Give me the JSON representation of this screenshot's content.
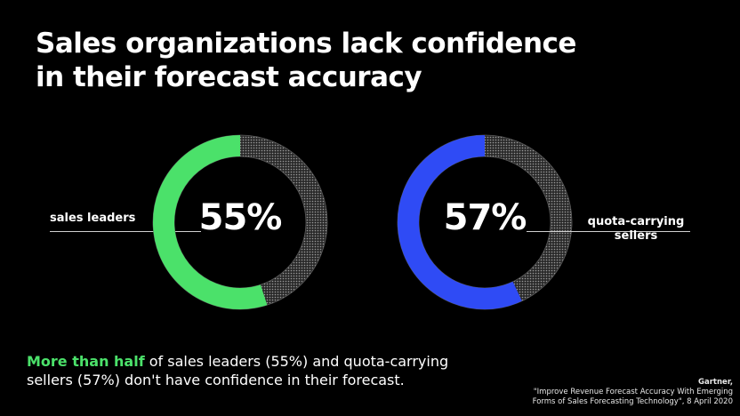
{
  "title": {
    "line1": "Sales organizations lack confidence",
    "line2": "in their forecast accuracy"
  },
  "chart_data": {
    "type": "pie",
    "variant": "donut",
    "charts": [
      {
        "label": "sales leaders",
        "value": 55,
        "display": "55%",
        "color": "#4be16a"
      },
      {
        "label_line1": "quota-carrying",
        "label_line2": "sellers",
        "value": 57,
        "display": "57%",
        "color": "#2f4bf5"
      }
    ],
    "remainder_style": "dotted-gray"
  },
  "footer": {
    "highlight": "More than half",
    "rest_line1": " of sales leaders (55%) and quota-carrying",
    "line2": "sellers (57%) don't have confidence in their forecast."
  },
  "source": {
    "org": "Gartner,",
    "line1": "\"Improve Revenue Forecast Accuracy With Emerging",
    "line2": "Forms of Sales Forecasting Technology\", 8 April 2020"
  }
}
